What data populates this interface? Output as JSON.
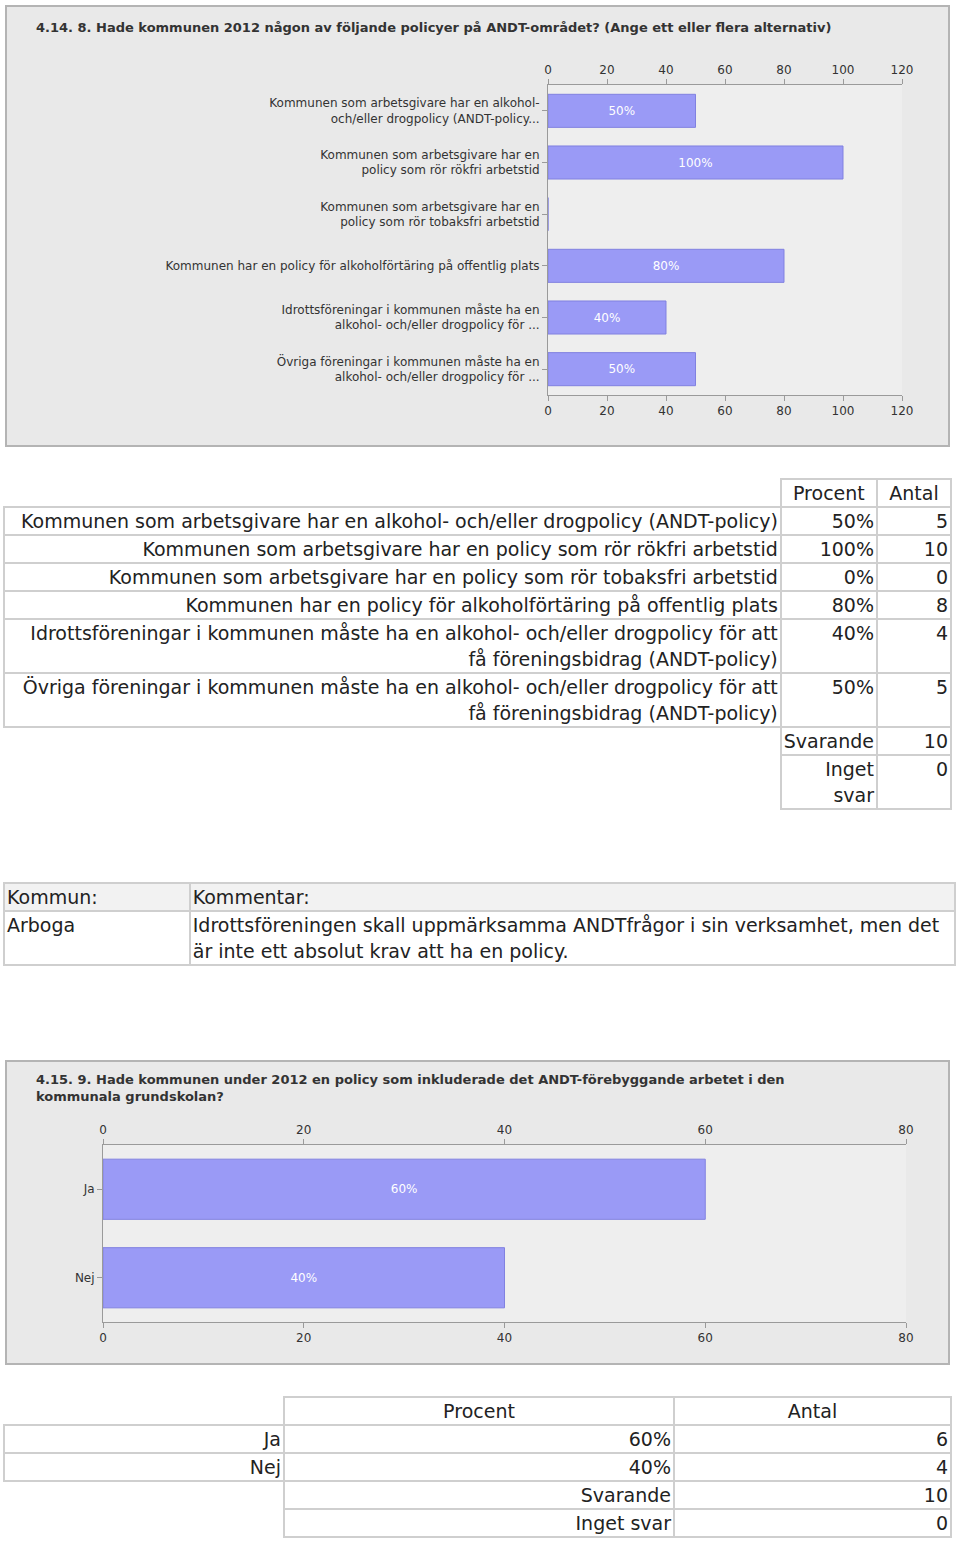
{
  "chart_data": [
    {
      "type": "bar",
      "title": "4.14. 8. Hade kommunen 2012 någon av följande policyer på ANDT-området? (Ange ett eller flera alternativ)",
      "orientation": "horizontal",
      "categories": [
        "Kommunen som arbetsgivare har en alkohol-\noch/eller drogpolicy (ANDT-policy...",
        "Kommunen som arbetsgivare har en\npolicy som rör rökfri arbetstid",
        "Kommunen som arbetsgivare har en\npolicy som rör tobaksfri arbetstid",
        "Kommunen har en policy för alkoholförtäring på offentlig plats",
        "Idrottsföreningar i kommunen måste ha en\nalkohol- och/eller drogpolicy för ...",
        "Övriga föreningar i kommunen måste ha en\nalkohol- och/eller drogpolicy för ..."
      ],
      "values": [
        50,
        100,
        0,
        80,
        40,
        50
      ],
      "value_labels": [
        "50%",
        "100%",
        null,
        "80%",
        "40%",
        "50%"
      ],
      "data_labels": true,
      "color": "#9a9af6",
      "xlim": [
        0,
        120
      ],
      "xticks": [
        0,
        20,
        40,
        60,
        80,
        100,
        120
      ],
      "grid": false
    },
    {
      "type": "bar",
      "title": "4.15. 9. Hade kommunen under 2012 en policy som inkluderade det ANDT-förebyggande arbetet i den kommunala grundskolan?",
      "orientation": "horizontal",
      "categories": [
        "Ja",
        "Nej"
      ],
      "values": [
        60,
        40
      ],
      "value_labels": [
        "60%",
        "40%"
      ],
      "data_labels": true,
      "color": "#9a9af6",
      "xlim": [
        0,
        80
      ],
      "xticks": [
        0,
        20,
        40,
        60,
        80
      ],
      "grid": false
    }
  ],
  "tables": [
    {
      "header": [
        "Procent",
        "Antal"
      ],
      "rows": [
        [
          "Kommunen som arbetsgivare har en alkohol- och/eller drogpolicy (ANDT-policy)",
          "50%",
          "5"
        ],
        [
          "Kommunen som arbetsgivare har en policy som rör rökfri arbetstid",
          "100%",
          "10"
        ],
        [
          "Kommunen som arbetsgivare har en policy som rör tobaksfri arbetstid",
          "0%",
          "0"
        ],
        [
          "Kommunen har en policy för alkoholförtäring på offentlig plats",
          "80%",
          "8"
        ],
        [
          "Idrottsföreningar i kommunen måste ha en alkohol- och/eller drogpolicy för att få föreningsbidrag (ANDT-policy)",
          "40%",
          "4"
        ],
        [
          "Övriga föreningar i kommunen måste ha en alkohol- och/eller drogpolicy för att få föreningsbidrag (ANDT-policy)",
          "50%",
          "5"
        ]
      ],
      "summary": [
        [
          "Svarande",
          "10"
        ],
        [
          "Inget svar",
          "0"
        ]
      ]
    },
    {
      "header": [
        "Procent",
        "Antal"
      ],
      "rows": [
        [
          "Ja",
          "60%",
          "6"
        ],
        [
          "Nej",
          "40%",
          "4"
        ]
      ],
      "summary": [
        [
          "Svarande",
          "10"
        ],
        [
          "Inget svar",
          "0"
        ]
      ]
    }
  ],
  "comments": {
    "header": [
      "Kommun:",
      "Kommentar:"
    ],
    "rows": [
      [
        "Arboga",
        "Idrottsföreningen skall uppmärksamma ANDTfrågor i sin verksamhet, men det är inte ett absolut krav att ha en policy."
      ]
    ]
  }
}
